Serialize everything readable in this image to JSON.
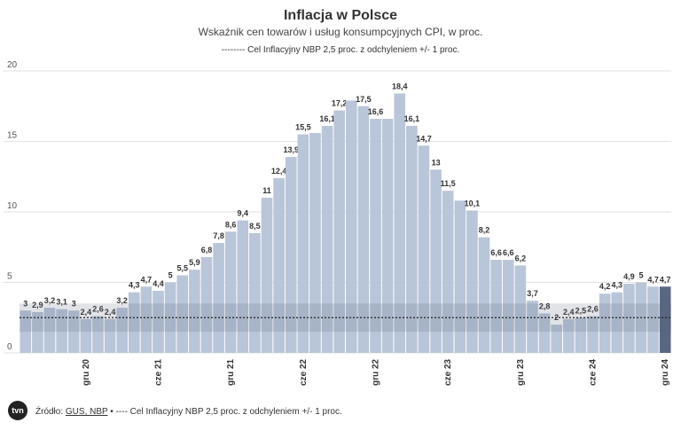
{
  "chart_data": {
    "type": "bar",
    "title": "Inflacja w Polsce",
    "subtitle": "Wskaźnik cen towarów i usług konsumpcyjnych CPI, w proc.",
    "legend_note": "-------- Cel Inflacyjny NBP 2,5 proc. z odchyleniem +/- 1 proc.",
    "categories": [
      null,
      null,
      null,
      null,
      null,
      "gru 20",
      null,
      null,
      null,
      null,
      null,
      "cze 21",
      null,
      null,
      null,
      null,
      null,
      "gru 21",
      null,
      null,
      null,
      null,
      null,
      "cze 22",
      null,
      null,
      null,
      null,
      null,
      "gru 22",
      null,
      null,
      null,
      null,
      null,
      "cze 23",
      null,
      null,
      null,
      null,
      null,
      "gru 23",
      null,
      null,
      null,
      null,
      null,
      "cze 24",
      null,
      null,
      null,
      null,
      null,
      "gru 24"
    ],
    "values": [
      3,
      2.9,
      3.2,
      3.1,
      3,
      2.4,
      2.6,
      2.4,
      3.2,
      4.3,
      4.7,
      4.4,
      5,
      5.5,
      5.9,
      6.8,
      7.8,
      8.6,
      9.4,
      8.5,
      11,
      12.4,
      13.9,
      15.5,
      15.6,
      16.1,
      17.2,
      17.9,
      17.5,
      16.6,
      16.6,
      18.4,
      16.1,
      14.7,
      13,
      11.5,
      10.8,
      10.1,
      8.2,
      6.6,
      6.6,
      6.2,
      3.7,
      2.8,
      2,
      2.4,
      2.5,
      2.6,
      4.2,
      4.3,
      4.9,
      5,
      4.7,
      4.7
    ],
    "value_labels": [
      "3",
      "2,9",
      "3,2",
      "3,1",
      "3",
      "2,4",
      "2,6",
      "2,4",
      "3,2",
      "4,3",
      "4,7",
      "4,4",
      "5",
      "5,5",
      "5,9",
      "6,8",
      "7,8",
      "8,6",
      "9,4",
      "8,5",
      "11",
      "12,4",
      "13,9",
      "15,5",
      null,
      "16,1",
      "17,2",
      null,
      "17,5",
      "16,6",
      null,
      "18,4",
      "16,1",
      "14,7",
      "13",
      "11,5",
      null,
      "10,1",
      "8,2",
      "6,6",
      "6,6",
      "6,2",
      "3,7",
      "2,8",
      "2",
      "2,4",
      "2,5",
      "2,6",
      "4,2",
      "4,3",
      "4,9",
      "5",
      "4,7",
      "4,7"
    ],
    "color": "#b9c5d8",
    "highlight": {
      "index": 53,
      "color": "#5a6782"
    },
    "target_line": 2.5,
    "target_band": [
      1.5,
      3.5
    ],
    "ylim": [
      0,
      20
    ],
    "yticks": [
      0,
      5,
      10,
      15,
      20
    ],
    "grid": true
  },
  "footer": {
    "logo": "tvn",
    "source_label": "Źródło:",
    "source": "GUS, NBP",
    "note": "• ---- Cel Inflacyjny NBP 2,5 proc. z odchyleniem +/- 1 proc."
  }
}
